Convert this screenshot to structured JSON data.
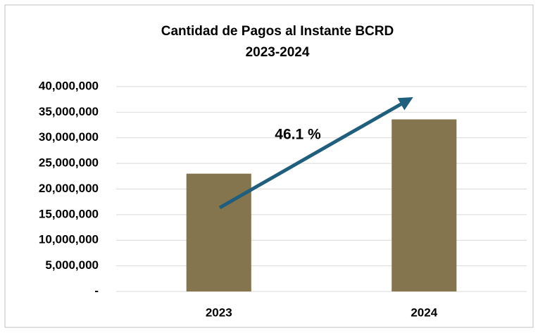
{
  "chart_data": {
    "type": "bar",
    "title": "Cantidad de Pagos al Instante BCRD",
    "subtitle": "2023-2024",
    "categories": [
      "2023",
      "2024"
    ],
    "values": [
      23000000,
      33600000
    ],
    "color": "#84754e",
    "annotation": "46.1 %",
    "ylim": [
      0,
      40000000
    ],
    "yticks": [
      {
        "value": 0,
        "label": "-"
      },
      {
        "value": 5000000,
        "label": "5,000,000"
      },
      {
        "value": 10000000,
        "label": "10,000,000"
      },
      {
        "value": 15000000,
        "label": "15,000,000"
      },
      {
        "value": 20000000,
        "label": "20,000,000"
      },
      {
        "value": 25000000,
        "label": "25,000,000"
      },
      {
        "value": 30000000,
        "label": "30,000,000"
      },
      {
        "value": 35000000,
        "label": "35,000,000"
      },
      {
        "value": 40000000,
        "label": "40,000,000"
      }
    ],
    "grid": true
  }
}
